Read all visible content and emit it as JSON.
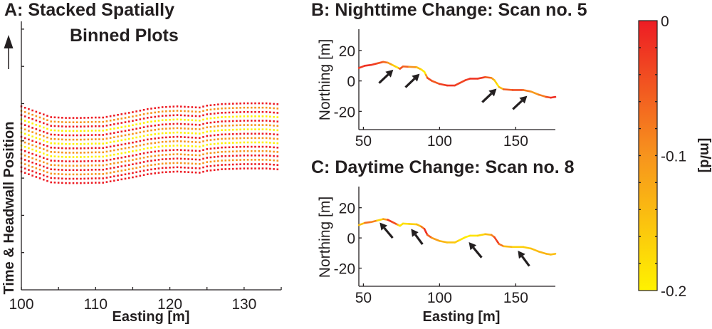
{
  "colors": {
    "red": "#ED1C24",
    "orange": "#F7941D",
    "yellow": "#FFF200",
    "axis": "#231f20"
  },
  "chart_data": [
    {
      "id": "A",
      "type": "scatter",
      "title_line1": "A: Stacked Spatially",
      "title_line2": "Binned Plots",
      "xlabel": "Easting [m]",
      "ylabel": "Time & Headwall Position",
      "ylabel_arrow": "up-arrow",
      "xlim": [
        100,
        135
      ],
      "xticks": [
        100,
        105,
        110,
        115,
        120,
        125,
        130,
        135
      ],
      "xtick_labels": [
        "100",
        "110",
        "120",
        "130"
      ],
      "xtick_label_values": [
        100,
        110,
        120,
        130
      ],
      "yticks_count": 7,
      "grid": false,
      "dot_spacing_m": 0.5,
      "rows": 16,
      "row_colors": [
        "red",
        "orange",
        "red",
        "yellow",
        "red",
        "orange",
        "yellow",
        "red",
        "orange",
        "yellow",
        "red",
        "orange",
        "red",
        "orange",
        "red",
        "red"
      ],
      "top_row_profile": {
        "x": [
          100,
          102,
          104,
          106,
          108,
          110,
          111,
          113,
          115,
          117,
          119,
          121,
          123,
          124,
          125,
          127,
          130,
          133,
          135
        ],
        "y_rel": [
          1.0,
          0.86,
          0.72,
          0.7,
          0.7,
          0.71,
          0.71,
          0.78,
          0.85,
          0.93,
          0.98,
          1.0,
          0.98,
          0.97,
          1.02,
          1.06,
          1.08,
          1.08,
          1.05
        ]
      },
      "stack_thickness_rel": 1.0
    },
    {
      "id": "B",
      "type": "line",
      "title": "B: Nighttime Change: Scan no. 5",
      "xlabel": "",
      "ylabel": "Northing [m]",
      "xlim": [
        47,
        176
      ],
      "ylim": [
        -32,
        34
      ],
      "xticks": [
        50,
        100,
        150
      ],
      "yticks": [
        20,
        0,
        -20
      ],
      "xtick_labels": [
        "50",
        "100",
        "150"
      ],
      "ytick_labels": [
        "20",
        "0",
        "-20"
      ],
      "x": [
        47,
        51,
        55,
        59,
        63,
        66,
        69,
        72,
        73,
        74,
        76,
        80,
        85,
        88,
        90,
        91,
        92,
        95,
        100,
        105,
        110,
        113,
        117,
        120,
        125,
        130,
        134,
        136,
        138,
        139,
        142,
        148,
        155,
        160,
        165,
        170,
        173,
        176
      ],
      "y": [
        8.5,
        10,
        10.5,
        11.5,
        12.5,
        12,
        10.5,
        9,
        8.5,
        8,
        9.5,
        9.3,
        9,
        7.5,
        6,
        4,
        2,
        0,
        -2,
        -3,
        -3,
        -1.5,
        0.5,
        1.5,
        1.5,
        2.5,
        2,
        0.5,
        -2.5,
        -4,
        -5.5,
        -6,
        -6,
        -7,
        -9,
        -10.5,
        -11,
        -10.5
      ],
      "value_m_per_d": [
        -0.03,
        -0.02,
        -0.01,
        -0.04,
        -0.05,
        -0.08,
        -0.14,
        -0.18,
        -0.2,
        -0.05,
        -0.04,
        -0.08,
        -0.12,
        -0.17,
        -0.2,
        -0.19,
        -0.02,
        -0.06,
        -0.04,
        -0.02,
        -0.02,
        -0.04,
        -0.03,
        -0.02,
        -0.02,
        -0.03,
        -0.08,
        -0.14,
        -0.19,
        -0.2,
        -0.08,
        -0.03,
        -0.05,
        -0.11,
        -0.1,
        -0.06,
        -0.02,
        -0.01
      ],
      "arrows": [
        {
          "from": [
            60.3,
            -1.4
          ],
          "to": [
            69.6,
            7.4
          ]
        },
        {
          "from": [
            77.6,
            -4.2
          ],
          "to": [
            86.9,
            4.7
          ]
        },
        {
          "from": [
            128.0,
            -14.0
          ],
          "to": [
            137.4,
            -5.1
          ]
        },
        {
          "from": [
            148.1,
            -18.6
          ],
          "to": [
            157.5,
            -9.8
          ]
        }
      ]
    },
    {
      "id": "C",
      "type": "line",
      "title": "C: Daytime Change: Scan no. 8",
      "xlabel": "Easting [m]",
      "ylabel": "Northing [m]",
      "xlim": [
        47,
        176
      ],
      "ylim": [
        -32,
        34
      ],
      "xticks": [
        50,
        100,
        150
      ],
      "yticks": [
        20,
        0,
        -20
      ],
      "xtick_labels": [
        "50",
        "100",
        "150"
      ],
      "ytick_labels": [
        "20",
        "0",
        "-20"
      ],
      "x": [
        47,
        51,
        55,
        59,
        63,
        66,
        69,
        72,
        73,
        74,
        76,
        80,
        85,
        88,
        90,
        91,
        92,
        95,
        100,
        105,
        110,
        113,
        117,
        120,
        125,
        130,
        134,
        136,
        138,
        139,
        142,
        148,
        155,
        160,
        165,
        170,
        173,
        176
      ],
      "y": [
        8.5,
        10,
        10.5,
        11.5,
        12.5,
        12,
        10.5,
        9,
        8.5,
        8,
        9.5,
        9.3,
        9,
        7.5,
        6,
        4,
        2,
        0,
        -2,
        -3,
        -3,
        -1.5,
        0.5,
        1.5,
        1.5,
        2.5,
        2,
        0.5,
        -2.5,
        -4,
        -5.5,
        -6,
        -6,
        -7,
        -9,
        -10.5,
        -11,
        -10.5
      ],
      "value_m_per_d": [
        -0.17,
        -0.12,
        -0.02,
        -0.15,
        -0.19,
        -0.03,
        -0.02,
        -0.06,
        -0.15,
        -0.18,
        -0.19,
        -0.17,
        -0.16,
        -0.12,
        -0.03,
        -0.01,
        -0.02,
        -0.1,
        -0.12,
        -0.15,
        -0.15,
        -0.17,
        -0.2,
        -0.19,
        -0.18,
        -0.16,
        -0.12,
        -0.05,
        -0.02,
        -0.03,
        -0.12,
        -0.16,
        -0.17,
        -0.15,
        -0.14,
        -0.13,
        -0.14,
        -0.15
      ],
      "arrows": [
        {
          "from": [
            69.2,
            0.0
          ],
          "to": [
            60.7,
            10.2
          ]
        },
        {
          "from": [
            88.8,
            -4.2
          ],
          "to": [
            81.3,
            6.0
          ]
        },
        {
          "from": [
            127.6,
            -13.0
          ],
          "to": [
            119.2,
            -2.8
          ]
        },
        {
          "from": [
            158.9,
            -18.6
          ],
          "to": [
            151.4,
            -8.4
          ]
        }
      ]
    },
    {
      "id": "colorbar",
      "type": "colorbar",
      "label": "[m/d]",
      "range": [
        -0.2,
        0
      ],
      "tick_labels": [
        "0",
        "-0.1",
        "-0.2"
      ],
      "tick_values": [
        0,
        -0.1,
        -0.2
      ],
      "minor_tick_step": 0.02,
      "colormap": [
        "#FFF200",
        "#F7941D",
        "#ED1C24"
      ]
    }
  ]
}
